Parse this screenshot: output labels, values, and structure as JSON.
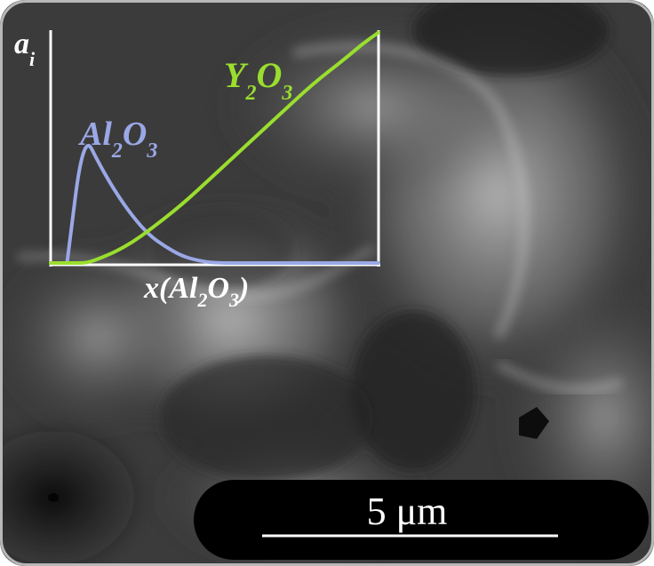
{
  "chart_data": {
    "type": "line",
    "ylabel_main": "a",
    "ylabel_sub": "i",
    "xlabel_parts": [
      "x(Al",
      "2",
      "O",
      "3",
      ")"
    ],
    "xlim": [
      0,
      1
    ],
    "ylim": [
      0,
      1
    ],
    "axes_on_plot": "left and bottom",
    "grid": false,
    "series": [
      {
        "name": "Al2O3",
        "label_parts": [
          "Al",
          "2",
          "O",
          "3"
        ],
        "color": "#9aa8e6",
        "x": [
          0.0,
          0.05,
          0.1,
          0.15,
          0.2,
          0.25,
          0.3,
          0.35,
          0.4,
          0.45,
          0.5,
          0.6,
          0.7,
          0.8,
          0.9,
          0.95,
          1.0
        ],
        "y": [
          0.0,
          0.0,
          0.56,
          0.42,
          0.3,
          0.2,
          0.12,
          0.07,
          0.03,
          0.01,
          0.0,
          0.0,
          0.0,
          0.0,
          0.0,
          0.0,
          0.0
        ]
      },
      {
        "name": "Y2O3",
        "label_parts": [
          "Y",
          "2",
          "O",
          "3"
        ],
        "color": "#9ade2e",
        "x": [
          0.0,
          0.05,
          0.1,
          0.12,
          0.15,
          0.2,
          0.25,
          0.3,
          0.4,
          0.5,
          0.6,
          0.7,
          0.8,
          0.9,
          0.95,
          1.0
        ],
        "y": [
          0.0,
          0.0,
          0.0,
          0.005,
          0.02,
          0.05,
          0.09,
          0.14,
          0.25,
          0.38,
          0.51,
          0.64,
          0.77,
          0.88,
          0.94,
          0.99
        ]
      }
    ]
  },
  "scale_bar": {
    "label": "5 μm"
  }
}
